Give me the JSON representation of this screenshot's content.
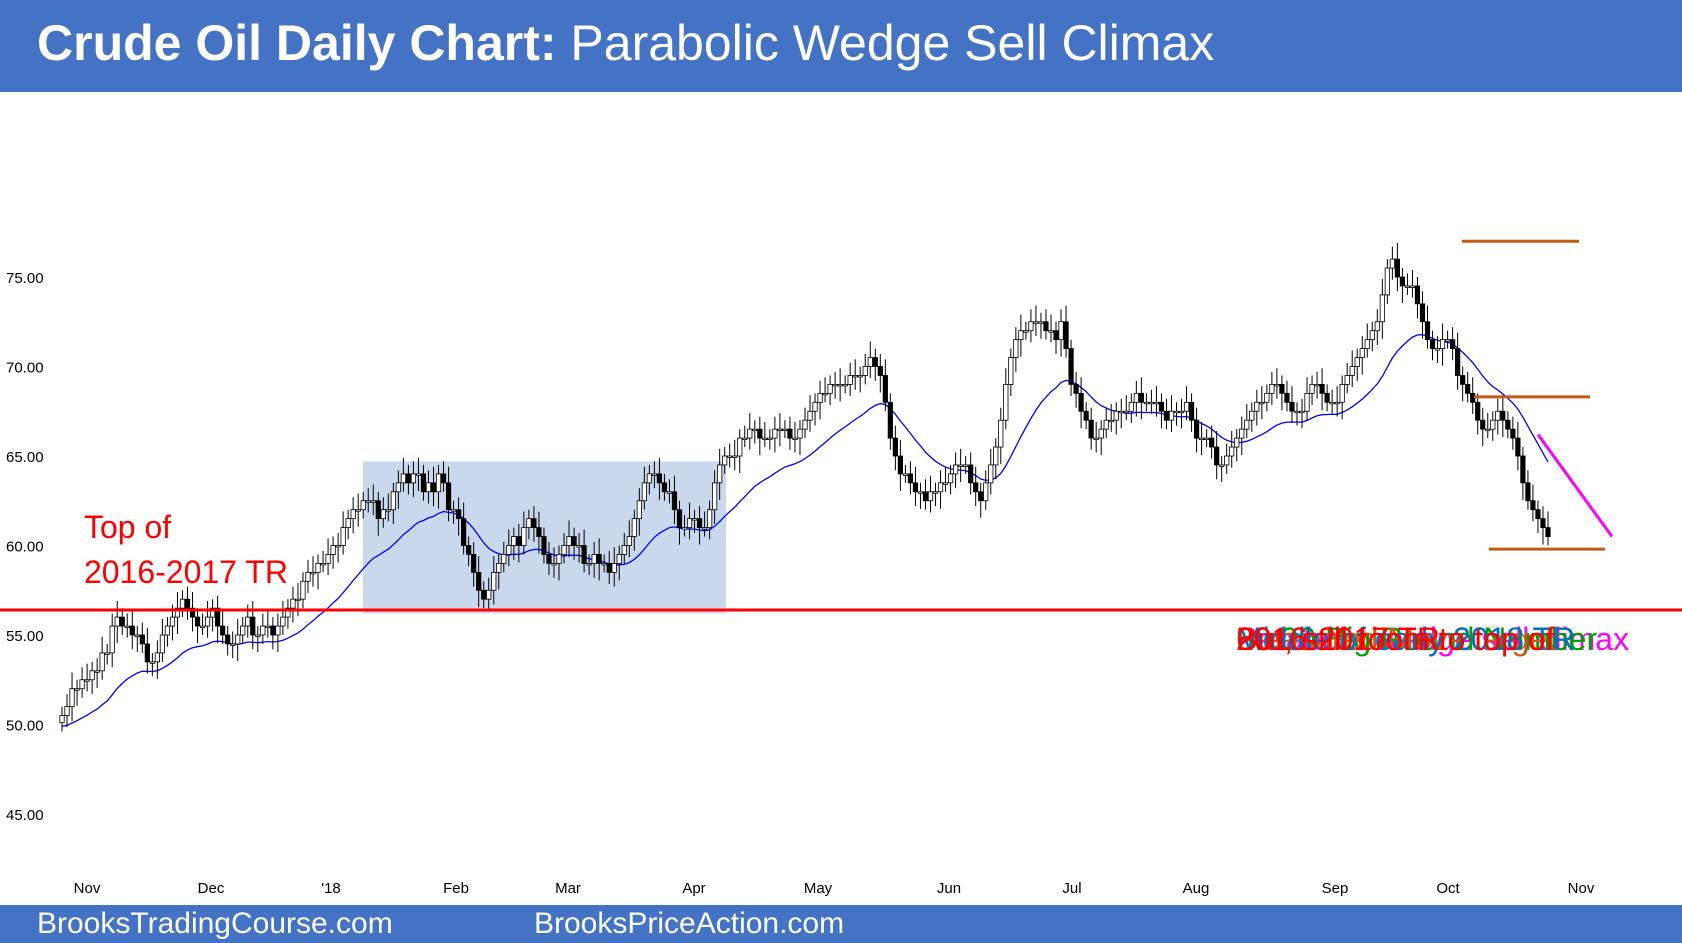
{
  "header": {
    "title_bold": "Crude Oil Daily Chart:",
    "title_rest": " Parabolic Wedge Sell Climax"
  },
  "footer": {
    "left": "BrooksTradingCourse.com",
    "right": "BrooksPriceAction.com"
  },
  "annotations": {
    "top_tr_line1": "Top of",
    "top_tr_line2": "2016-2017 TR",
    "items": [
      {
        "text": "Parabolic wedge sell climax",
        "color": "#ff00ff"
      },
      {
        "text": "60.00 Big Round Number",
        "color": "#00a000"
      },
      {
        "text": "Measured Move target",
        "color": "#c55a11"
      },
      {
        "text": "Middle of early 2018 TR",
        "color": "#0070c0"
      },
      {
        "text": "But, still room to top of",
        "color": "#ff0000"
      },
      {
        "text": "2016-2017 TR",
        "color": "#ff0000"
      }
    ]
  },
  "colors": {
    "header": "#4472c4",
    "ma": "#0000ff",
    "range_box": "#b4c7e7",
    "tr_line": "#ff0000",
    "mm": "#c55a11",
    "wedge": "#ff00ff",
    "candle_up": "#ffffff",
    "candle_down": "#000000"
  },
  "chart_data": {
    "type": "candlestick",
    "title": "Crude Oil Daily Chart: Parabolic Wedge Sell Climax",
    "ylim": [
      43,
      78
    ],
    "y_ticks": [
      "75.00",
      "70.00",
      "65.00",
      "60.00",
      "55.00",
      "50.00",
      "45.00"
    ],
    "x_ticks": [
      "Nov",
      "Dec",
      "'18",
      "Feb",
      "Mar",
      "Apr",
      "May",
      "Jun",
      "Jul",
      "Aug",
      "Sep",
      "Oct",
      "Nov"
    ],
    "grid": false,
    "closes_approx": [
      50.5,
      51,
      52,
      52,
      52.5,
      52.5,
      53,
      53,
      54,
      54,
      55.5,
      56,
      55.5,
      55.5,
      55,
      55,
      54.5,
      53.5,
      53.5,
      54,
      55,
      55.5,
      56,
      56.5,
      57,
      56.5,
      56,
      55.5,
      55.5,
      56,
      56.5,
      55.5,
      55,
      54.5,
      54.5,
      55,
      55.5,
      56,
      55,
      55,
      55.5,
      55.5,
      55,
      55.5,
      56,
      56.5,
      57,
      57,
      58,
      58.5,
      58.5,
      59,
      59,
      59.5,
      60,
      60,
      61,
      61.5,
      62,
      62,
      62.5,
      62.5,
      62.5,
      61.5,
      62,
      62,
      63,
      63.5,
      64,
      63.5,
      64,
      64,
      63,
      63.5,
      63,
      64,
      63.5,
      62,
      62,
      61.5,
      60,
      59.5,
      58.5,
      57.5,
      57,
      57.5,
      58.5,
      59,
      59.5,
      60,
      60.5,
      60,
      61,
      61.5,
      61,
      60.5,
      59.5,
      59,
      59,
      59.5,
      60,
      60.5,
      60,
      60,
      59,
      59,
      59.5,
      59,
      59,
      58.5,
      59,
      59.5,
      60,
      60.5,
      61.5,
      62.5,
      63.5,
      64,
      64,
      63.5,
      63,
      63,
      62,
      61,
      61,
      61.5,
      61.5,
      61,
      61,
      62,
      63.5,
      64.5,
      65,
      65,
      65,
      66,
      66,
      66.5,
      66.5,
      66,
      66,
      66,
      66.5,
      66.5,
      66.5,
      66,
      66,
      66.5,
      67,
      67.5,
      68,
      68.5,
      68.5,
      69,
      69,
      69,
      69,
      69.5,
      69.5,
      69.5,
      70,
      70.5,
      70,
      69.5,
      68,
      66,
      65,
      64,
      64,
      63.5,
      63,
      63,
      62.5,
      63,
      63,
      63.5,
      63.5,
      64,
      64.5,
      64.5,
      64.5,
      63.5,
      63,
      62.5,
      63.5,
      64.5,
      65.5,
      67,
      69,
      70.5,
      71.5,
      72,
      72,
      72.5,
      72.5,
      72.5,
      72,
      72,
      71.5,
      72.5,
      71,
      69,
      68.5,
      67.5,
      67,
      66,
      66,
      66.5,
      67,
      67,
      67.5,
      67.5,
      67.5,
      68,
      68.5,
      68,
      68,
      68,
      68,
      67.5,
      67,
      67.5,
      67.5,
      67.5,
      68,
      67,
      66,
      66,
      66,
      65.5,
      64.5,
      64.5,
      65,
      65.5,
      66,
      66.5,
      67,
      67.5,
      68,
      68,
      68.5,
      69,
      69,
      68.5,
      68,
      67.5,
      67.5,
      67.5,
      68.5,
      69,
      69,
      68.5,
      68,
      68,
      68,
      69,
      69.5,
      70,
      70.5,
      71,
      71.5,
      72,
      72.5,
      74,
      75.5,
      76,
      75,
      74.5,
      74.5,
      74.5,
      73.5,
      72.5,
      71.5,
      71,
      71,
      71.5,
      71.5,
      71,
      69.5,
      69,
      68.5,
      68,
      67,
      66.5,
      66.5,
      67,
      67.5,
      67,
      66.5,
      66,
      65,
      63.5,
      62.5,
      62,
      61.5,
      61,
      60.5
    ],
    "horizontal_lines": [
      {
        "label": "Top of 2016-2017 TR",
        "y": 56.4
      },
      {
        "label": "Measured Move target",
        "y": 77,
        "x_range": [
          "Oct",
          "Oct"
        ]
      },
      {
        "label": "Measured Move target",
        "y": 68.3,
        "x_range": [
          "Oct",
          "Nov"
        ]
      },
      {
        "label": "Measured Move target",
        "y": 59.8,
        "x_range": [
          "Oct",
          "Nov"
        ]
      }
    ],
    "shaded_range": {
      "label": "early 2018 TR",
      "y_range": [
        56.2,
        64.7
      ],
      "x_range": [
        "Jan",
        "Apr"
      ]
    },
    "wedge_line": {
      "label": "Parabolic wedge sell climax",
      "y_range": [
        66.2,
        60.5
      ]
    },
    "moving_average": "20-bar EMA"
  }
}
